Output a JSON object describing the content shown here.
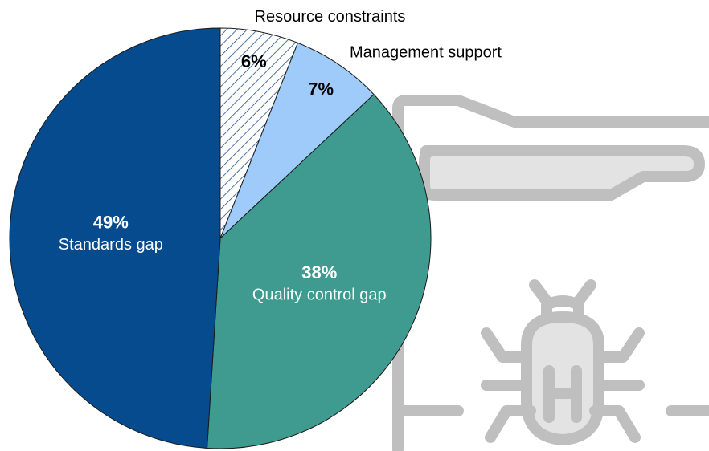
{
  "chart_data": {
    "type": "pie",
    "categories": [
      "Resource constraints",
      "Management support",
      "Quality control gap",
      "Standards gap"
    ],
    "values": [
      6,
      7,
      38,
      49
    ],
    "value_labels": [
      "6%",
      "7%",
      "38%",
      "49%"
    ],
    "colors": [
      "#1f4e8c",
      "#9ecbfa",
      "#3f9a8f",
      "#064b8e"
    ],
    "hatch": [
      true,
      false,
      false,
      false
    ]
  }
}
